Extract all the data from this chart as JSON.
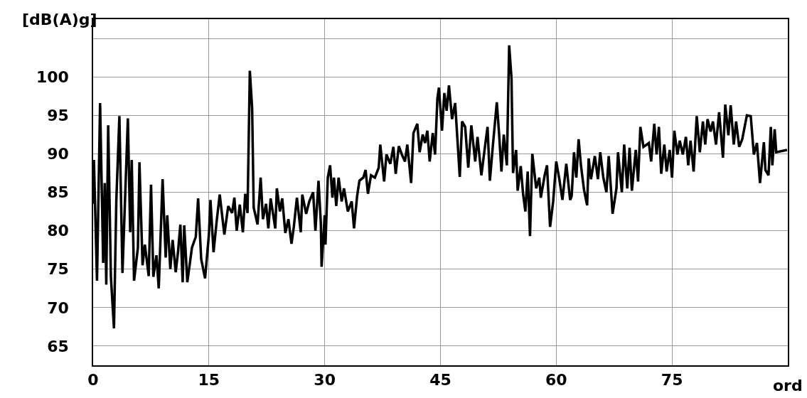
{
  "chart_data": {
    "type": "line",
    "xlabel": "ord",
    "ylabel": "[dB(A)g]",
    "xlim": [
      0,
      90
    ],
    "xticks": [
      0,
      15,
      30,
      45,
      60,
      75
    ],
    "ylim": [
      62.5,
      107.5
    ],
    "yticks": [
      65,
      70,
      75,
      80,
      85,
      90,
      95,
      100,
      {
        "value": 105,
        "label": null
      }
    ],
    "grid": true,
    "marker": "none",
    "line_style": "solid",
    "series": [
      {
        "color": "#000000",
        "x": [
          0,
          0.1,
          0.5,
          0.9,
          1.3,
          1.5,
          1.7,
          1.95,
          2.3,
          2.7,
          3.0,
          3.4,
          3.8,
          4.5,
          4.8,
          5.0,
          5.3,
          5.8,
          6.0,
          6.4,
          6.7,
          7.2,
          7.5,
          7.8,
          8.2,
          8.5,
          9.0,
          9.4,
          9.6,
          10.0,
          10.3,
          10.7,
          11.0,
          11.3,
          11.6,
          11.8,
          12.2,
          12.8,
          13.3,
          13.6,
          14.0,
          14.5,
          15.0,
          15.2,
          15.6,
          16.0,
          16.4,
          17.0,
          17.5,
          18.0,
          18.3,
          18.6,
          19.0,
          19.4,
          19.7,
          20.0,
          20.3,
          20.6,
          20.8,
          21.3,
          21.7,
          22.0,
          22.4,
          22.7,
          23.0,
          23.6,
          23.8,
          24.2,
          24.5,
          24.9,
          25.3,
          25.7,
          26.0,
          26.4,
          26.9,
          27.1,
          27.6,
          28.0,
          28.5,
          28.8,
          29.2,
          29.5,
          29.6,
          30.0,
          30.1,
          30.4,
          30.7,
          31.0,
          31.2,
          31.5,
          31.8,
          32.2,
          32.5,
          33.0,
          33.5,
          33.8,
          34.2,
          34.5,
          35.0,
          35.3,
          35.6,
          36.0,
          36.5,
          37.0,
          37.2,
          37.7,
          38.0,
          38.5,
          38.9,
          39.2,
          39.6,
          40.0,
          40.4,
          40.7,
          41.2,
          41.5,
          42.0,
          42.3,
          42.7,
          43.0,
          43.3,
          43.6,
          44.0,
          44.3,
          44.6,
          44.8,
          45.2,
          45.5,
          45.8,
          46.1,
          46.5,
          46.9,
          47.5,
          47.8,
          48.2,
          48.6,
          49.0,
          49.5,
          49.8,
          50.3,
          50.8,
          51.1,
          51.4,
          51.8,
          52.3,
          52.6,
          52.9,
          53.2,
          53.6,
          53.9,
          54.2,
          54.4,
          54.8,
          55.0,
          55.4,
          55.7,
          56.0,
          56.3,
          56.6,
          56.9,
          57.4,
          57.8,
          58.0,
          58.5,
          58.8,
          59.2,
          59.6,
          60.0,
          60.4,
          60.8,
          61.3,
          61.8,
          62.0,
          62.3,
          62.6,
          62.9,
          63.2,
          63.6,
          64.0,
          64.2,
          64.5,
          65.0,
          65.4,
          65.7,
          66.1,
          66.5,
          66.8,
          67.3,
          67.8,
          68.0,
          68.5,
          68.8,
          69.2,
          69.5,
          69.8,
          70.3,
          70.6,
          70.9,
          71.3,
          72.0,
          72.3,
          72.7,
          73.0,
          73.3,
          73.6,
          74.0,
          74.3,
          74.7,
          75.0,
          75.3,
          75.7,
          76.0,
          76.4,
          76.8,
          77.1,
          77.4,
          77.8,
          78.2,
          78.6,
          79.0,
          79.3,
          79.6,
          80.0,
          80.3,
          80.7,
          81.1,
          81.6,
          81.9,
          82.3,
          82.6,
          83.0,
          83.3,
          83.7,
          84.1,
          84.7,
          85.2,
          85.6,
          86.0,
          86.4,
          86.9,
          87.1,
          87.5,
          87.8,
          88.0,
          88.3,
          88.5,
          89.9
        ],
        "values": [
          83.5,
          89.2,
          73.5,
          96.6,
          75.8,
          86.2,
          73,
          93.7,
          74,
          67.3,
          83.8,
          94.9,
          74.5,
          94.6,
          79.8,
          89.2,
          73.5,
          77.8,
          88.9,
          75.5,
          78.2,
          74.1,
          86,
          74,
          76.8,
          72.5,
          86.7,
          76.5,
          82,
          75,
          78.8,
          74.6,
          77.3,
          80.8,
          73.3,
          80.7,
          73.3,
          77.8,
          79.2,
          84.2,
          76.3,
          73.8,
          79.5,
          84,
          77.2,
          81.2,
          84.7,
          79.5,
          83.2,
          82.3,
          84.3,
          80,
          83.4,
          79.8,
          84.8,
          82.3,
          100.8,
          95.9,
          83,
          80.8,
          86.9,
          81.5,
          83.5,
          80.3,
          84.2,
          80.3,
          85.5,
          82.5,
          84.2,
          79.7,
          81.5,
          78.3,
          80.5,
          84.3,
          79.8,
          84.7,
          82.2,
          83.8,
          85,
          80,
          86.5,
          81,
          75.3,
          82,
          78.2,
          86.9,
          88.5,
          84.3,
          86.9,
          83.2,
          86.9,
          83.8,
          85.5,
          82.5,
          83.8,
          80.3,
          84.5,
          86.5,
          86.9,
          87.9,
          84.8,
          87.2,
          86.9,
          88.2,
          91.2,
          86.4,
          89.9,
          88.7,
          90.9,
          87.4,
          91,
          89.9,
          89,
          91.2,
          86.2,
          92.7,
          93.9,
          90.2,
          92.5,
          91.4,
          93,
          89,
          92.7,
          89.9,
          97.2,
          98.6,
          93,
          97.9,
          95.6,
          98.9,
          94.5,
          96.6,
          87,
          94.2,
          93.5,
          88.2,
          93.7,
          89,
          92.2,
          87.2,
          91.2,
          93.5,
          86.5,
          91.2,
          96.7,
          92.5,
          87.7,
          92.5,
          88.5,
          104.1,
          99.9,
          87.5,
          90.5,
          85.2,
          88.4,
          84.8,
          82.5,
          87.7,
          79.3,
          90,
          85.5,
          86.9,
          84.3,
          87.2,
          88.5,
          80.5,
          83.8,
          89,
          86.7,
          84,
          88.7,
          84,
          84.5,
          90.2,
          86.9,
          91.9,
          88.5,
          85.3,
          83.3,
          89.4,
          86.7,
          89.7,
          86.7,
          90.2,
          86.9,
          85,
          89.7,
          82.2,
          85.5,
          90.2,
          85,
          91.2,
          85.5,
          90.8,
          85.2,
          90.5,
          86.4,
          93.5,
          90.9,
          91.4,
          89,
          93.9,
          89.9,
          93.5,
          87.4,
          91.2,
          87.7,
          90.5,
          86.9,
          93,
          89.9,
          91.7,
          89.9,
          92.2,
          88.5,
          91.7,
          87.7,
          94.9,
          90.2,
          94.2,
          91.2,
          94.5,
          92.9,
          94.2,
          91.2,
          95.4,
          89.5,
          96.4,
          92.4,
          96.3,
          91.2,
          94.2,
          90.9,
          91.9,
          95,
          94.9,
          89.9,
          91.4,
          86.2,
          91.5,
          87.9,
          87.2,
          93.5,
          88.5,
          93.2,
          90.2,
          90.5
        ]
      }
    ]
  }
}
